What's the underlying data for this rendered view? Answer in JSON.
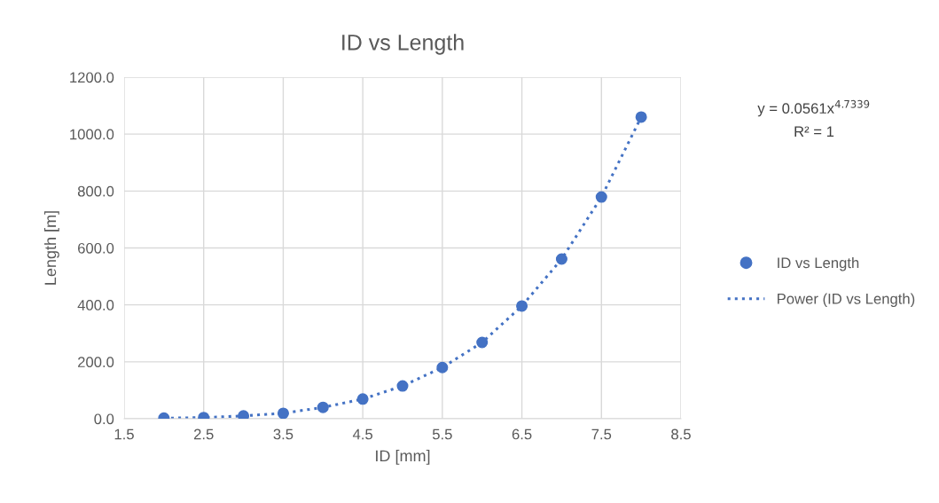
{
  "chart_data": {
    "type": "scatter",
    "title": "ID vs Length",
    "xlabel": "ID [mm]",
    "ylabel": "Length [m]",
    "x": [
      2,
      2.5,
      3,
      3.5,
      4,
      4.5,
      5,
      5.5,
      6,
      6.5,
      7,
      7.5,
      8
    ],
    "series": [
      {
        "name": "ID vs Length",
        "color": "#4472c4",
        "marker": "circle",
        "values": [
          2,
          4,
          10,
          19,
          40,
          69,
          115,
          180,
          268,
          396,
          561,
          779,
          1060
        ]
      },
      {
        "name": "Power (ID vs Length)",
        "color": "#4472c4",
        "type": "line",
        "line_style": "dotted",
        "marker": "none",
        "x": [
          2,
          2.5,
          3,
          3.5,
          4,
          4.5,
          5,
          5.5,
          6,
          6.5,
          7,
          7.5,
          8
        ],
        "values": [
          2,
          4,
          10,
          19,
          40,
          69,
          115,
          180,
          268,
          396,
          561,
          779,
          1060
        ]
      }
    ],
    "xlim": [
      1.5,
      8.5
    ],
    "xticks": [
      1.5,
      2.5,
      3.5,
      4.5,
      5.5,
      6.5,
      7.5,
      8.5
    ],
    "ylim": [
      0,
      1200
    ],
    "yticks": [
      {
        "value": 0,
        "label": "0.0"
      },
      {
        "value": 200,
        "label": "200.0"
      },
      {
        "value": 400,
        "label": "400.0"
      },
      {
        "value": 600,
        "label": "600.0"
      },
      {
        "value": 800,
        "label": "800.0"
      },
      {
        "value": 1000,
        "label": "1000.0"
      },
      {
        "value": 1200,
        "label": "1200.0"
      }
    ],
    "grid": true,
    "legend": "right",
    "annotations": [
      "y = 0.0561x$^{4.7339}$",
      "R² = 1"
    ]
  }
}
